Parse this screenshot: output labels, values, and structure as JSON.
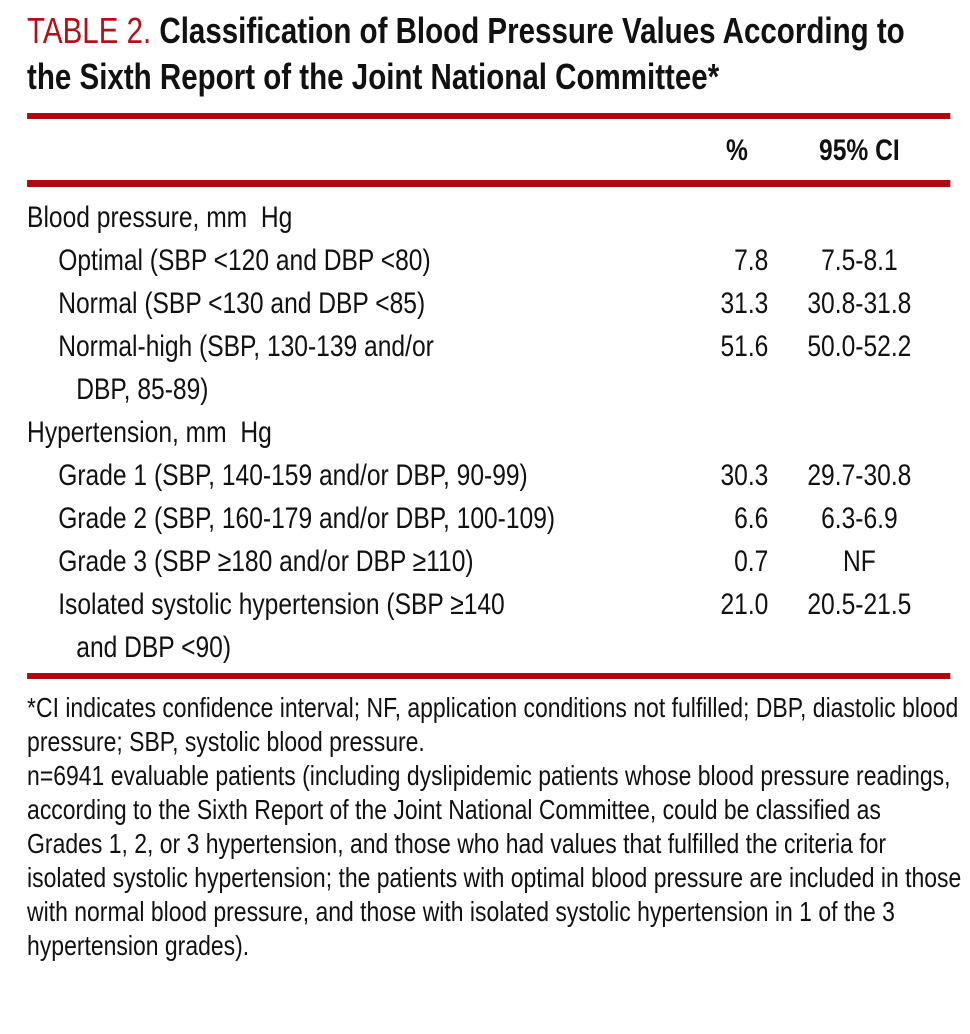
{
  "colors": {
    "accent-red": "#b21118",
    "rule-red": "#a90d13",
    "text": "#111111",
    "bg": "#ffffff"
  },
  "title": {
    "label": "TABLE 2.",
    "text": "Classification of Blood Pressure Values According to the Sixth Report of the Joint National Committee*"
  },
  "columns": {
    "pct": "%",
    "ci": "95% CI"
  },
  "table": {
    "rows": [
      {
        "label": "Blood pressure, mm  Hg",
        "pct": "",
        "ci": ""
      },
      {
        "label": "Optimal (SBP <120 and DBP <80)",
        "pct": "7.8",
        "ci": "7.5-8.1"
      },
      {
        "label": "Normal (SBP <130 and DBP <85)",
        "pct": "31.3",
        "ci": "30.8-31.8"
      },
      {
        "label": "Normal-high (SBP, 130-139 and/or",
        "label2": "DBP, 85-89)",
        "pct": "51.6",
        "ci": "50.0-52.2"
      },
      {
        "label": "Hypertension, mm  Hg",
        "pct": "",
        "ci": ""
      },
      {
        "label": "Grade 1 (SBP, 140-159 and/or DBP, 90-99)",
        "pct": "30.3",
        "ci": "29.7-30.8"
      },
      {
        "label": "Grade 2 (SBP, 160-179 and/or DBP, 100-109)",
        "pct": "6.6",
        "ci": "6.3-6.9"
      },
      {
        "label": "Grade 3 (SBP ≥180 and/or DBP ≥110)",
        "pct": "0.7",
        "ci": "NF"
      },
      {
        "label": "Isolated systolic hypertension (SBP ≥140",
        "label2": "and DBP <90)",
        "pct": "21.0",
        "ci": "20.5-21.5"
      }
    ]
  },
  "footnotes": [
    "*CI indicates confidence interval; NF, application conditions not fulfilled; DBP, diastolic blood pressure; SBP, systolic blood pressure.",
    "n=6941 evaluable patients (including dyslipidemic patients whose blood pressure readings, according to the Sixth Report of the Joint National Committee, could be classified as Grades 1, 2, or 3 hypertension, and those who had values that fulfilled the criteria for isolated systolic hypertension; the patients with optimal blood pressure are included in those with normal blood pressure, and those with isolated systolic hypertension in 1 of the 3 hypertension grades)."
  ]
}
